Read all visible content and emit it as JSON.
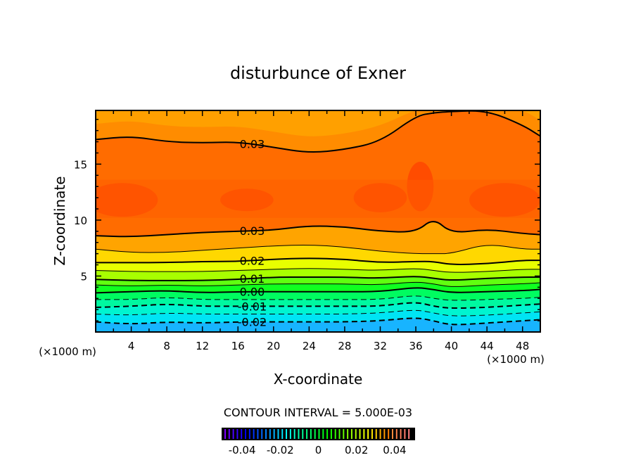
{
  "chart_data": {
    "type": "contour",
    "title": "disturbunce of Exner",
    "xlabel": "X-coordinate",
    "ylabel": "Z-coordinate",
    "x_unit_left": "(×1000 m)",
    "x_unit_right": "(×1000 m)",
    "xlim": [
      0,
      50
    ],
    "ylim": [
      0,
      19.8
    ],
    "xticks": [
      4,
      8,
      12,
      16,
      20,
      24,
      28,
      32,
      36,
      40,
      44,
      48
    ],
    "yticks": [
      5,
      10,
      15
    ],
    "contour_interval_label": "CONTOUR INTERVAL = 5.000E-03",
    "colorbar": {
      "range": [
        -0.05,
        0.05
      ],
      "ticks": [
        "-0.04",
        "-0.02",
        "0",
        "0.02",
        "0.04"
      ],
      "tick_values": [
        -0.04,
        -0.02,
        0,
        0.02,
        0.04
      ]
    },
    "x_samples": [
      0,
      4,
      8,
      12,
      16,
      20,
      24,
      28,
      32,
      36,
      38,
      40,
      44,
      48,
      50
    ],
    "contours": [
      {
        "level": -0.02,
        "label": "-0.02",
        "z": [
          0.9,
          0.7,
          0.9,
          0.8,
          0.9,
          0.9,
          0.9,
          0.9,
          1.0,
          1.3,
          1.0,
          0.6,
          0.8,
          1.0,
          1.1
        ],
        "fill_above": "#00e4f4"
      },
      {
        "level": -0.015,
        "label": "",
        "z": [
          1.6,
          1.5,
          1.7,
          1.6,
          1.6,
          1.6,
          1.6,
          1.6,
          1.7,
          2.0,
          1.7,
          1.4,
          1.5,
          1.7,
          1.8
        ],
        "fill_above": "#00f4d0"
      },
      {
        "level": -0.01,
        "label": "-0.01",
        "z": [
          2.2,
          2.3,
          2.5,
          2.3,
          2.3,
          2.3,
          2.3,
          2.3,
          2.3,
          2.7,
          2.3,
          2.1,
          2.2,
          2.4,
          2.5
        ],
        "fill_above": "#00f8a0"
      },
      {
        "level": -0.005,
        "label": "",
        "z": [
          2.9,
          2.9,
          3.1,
          2.9,
          2.9,
          2.9,
          2.9,
          2.9,
          2.9,
          3.3,
          3.0,
          2.8,
          2.9,
          3.0,
          3.1
        ],
        "fill_above": "#00fc60"
      },
      {
        "level": 0.0,
        "label": "0.00",
        "z": [
          3.5,
          3.6,
          3.7,
          3.5,
          3.6,
          3.6,
          3.6,
          3.6,
          3.6,
          4.0,
          3.8,
          3.5,
          3.6,
          3.7,
          3.8
        ],
        "fill_above": "#10ff20"
      },
      {
        "level": 0.005,
        "label": "",
        "z": [
          4.2,
          4.1,
          4.2,
          4.1,
          4.2,
          4.3,
          4.3,
          4.3,
          4.2,
          4.5,
          4.3,
          4.0,
          4.2,
          4.3,
          4.4
        ],
        "fill_above": "#60ff10"
      },
      {
        "level": 0.01,
        "label": "0.01",
        "z": [
          4.7,
          4.6,
          4.6,
          4.6,
          4.7,
          4.9,
          4.9,
          4.9,
          4.8,
          5.0,
          4.8,
          4.6,
          4.8,
          4.9,
          4.9
        ],
        "fill_above": "#a8ff00"
      },
      {
        "level": 0.015,
        "label": "",
        "z": [
          5.5,
          5.4,
          5.4,
          5.4,
          5.5,
          5.6,
          5.7,
          5.6,
          5.5,
          5.7,
          5.5,
          5.3,
          5.4,
          5.6,
          5.6
        ],
        "fill_above": "#e8ff00"
      },
      {
        "level": 0.02,
        "label": "0.02",
        "z": [
          6.2,
          6.2,
          6.2,
          6.3,
          6.3,
          6.5,
          6.6,
          6.5,
          6.2,
          6.3,
          6.3,
          6.0,
          6.1,
          6.4,
          6.4
        ],
        "fill_above": "#ffd800"
      },
      {
        "level": 0.025,
        "label": "",
        "z": [
          7.4,
          7.1,
          7.1,
          7.3,
          7.5,
          7.7,
          7.8,
          7.6,
          7.2,
          7.0,
          7.0,
          7.0,
          7.9,
          7.4,
          7.4
        ],
        "fill_above": "#ffa400"
      },
      {
        "level": 0.03,
        "label": "0.03",
        "z": [
          8.6,
          8.5,
          8.7,
          8.9,
          9.0,
          9.1,
          9.5,
          9.4,
          9.0,
          8.9,
          10.2,
          8.8,
          9.2,
          8.8,
          8.7
        ],
        "fill_above": "#ff6c00"
      },
      {
        "level": 0.03,
        "label": "0.03",
        "z": [
          17.2,
          17.5,
          17.0,
          16.9,
          17.0,
          16.5,
          16.0,
          16.3,
          17.0,
          19.3,
          19.6,
          19.7,
          19.8,
          18.5,
          17.5
        ],
        "fill_above": "#ff8c00"
      }
    ],
    "base_fill": "#18b4ff",
    "label_x": 17.6
  }
}
